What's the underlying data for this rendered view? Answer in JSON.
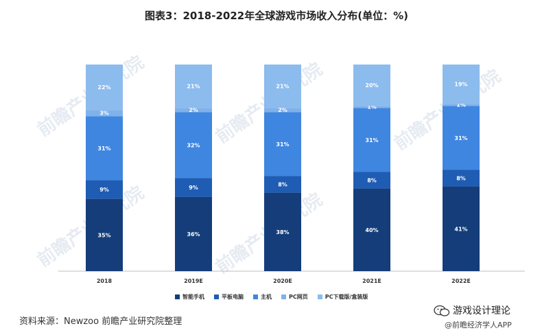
{
  "title": "图表3：2018-2022年全球游戏市场收入分布(单位：%)",
  "source": "资料来源：Newzoo 前瞻产业研究院整理",
  "watermark": {
    "account_name": "游戏设计理论",
    "handle": "@前瞻经济学人APP",
    "background_text": "前瞻产业研究院"
  },
  "colors": {
    "smartphone": "#143d7a",
    "tablet": "#1f5cb3",
    "console": "#3f86e0",
    "pc_web": "#7fb1ea",
    "pc_download": "#8cbbed"
  },
  "chart_data": {
    "type": "bar",
    "stacked": true,
    "normalized": true,
    "title": "图表3：2018-2022年全球游戏市场收入分布(单位：%)",
    "categories": [
      "2018",
      "2019E",
      "2020E",
      "2021E",
      "2022E"
    ],
    "series": [
      {
        "name": "智能手机",
        "values": [
          35,
          36,
          38,
          40,
          41
        ],
        "color": "#143d7a"
      },
      {
        "name": "平板电脑",
        "values": [
          9,
          9,
          8,
          8,
          8
        ],
        "color": "#1f5cb3"
      },
      {
        "name": "主机",
        "values": [
          31,
          32,
          31,
          31,
          31
        ],
        "color": "#3f86e0"
      },
      {
        "name": "PC网页",
        "values": [
          3,
          2,
          2,
          1,
          1
        ],
        "color": "#7fb1ea"
      },
      {
        "name": "PC下载版/盒装版",
        "values": [
          22,
          21,
          21,
          20,
          19
        ],
        "color": "#8cbbed"
      }
    ],
    "value_suffix": "%",
    "ylim": [
      0,
      100
    ],
    "grid": false,
    "legend_position": "bottom"
  }
}
